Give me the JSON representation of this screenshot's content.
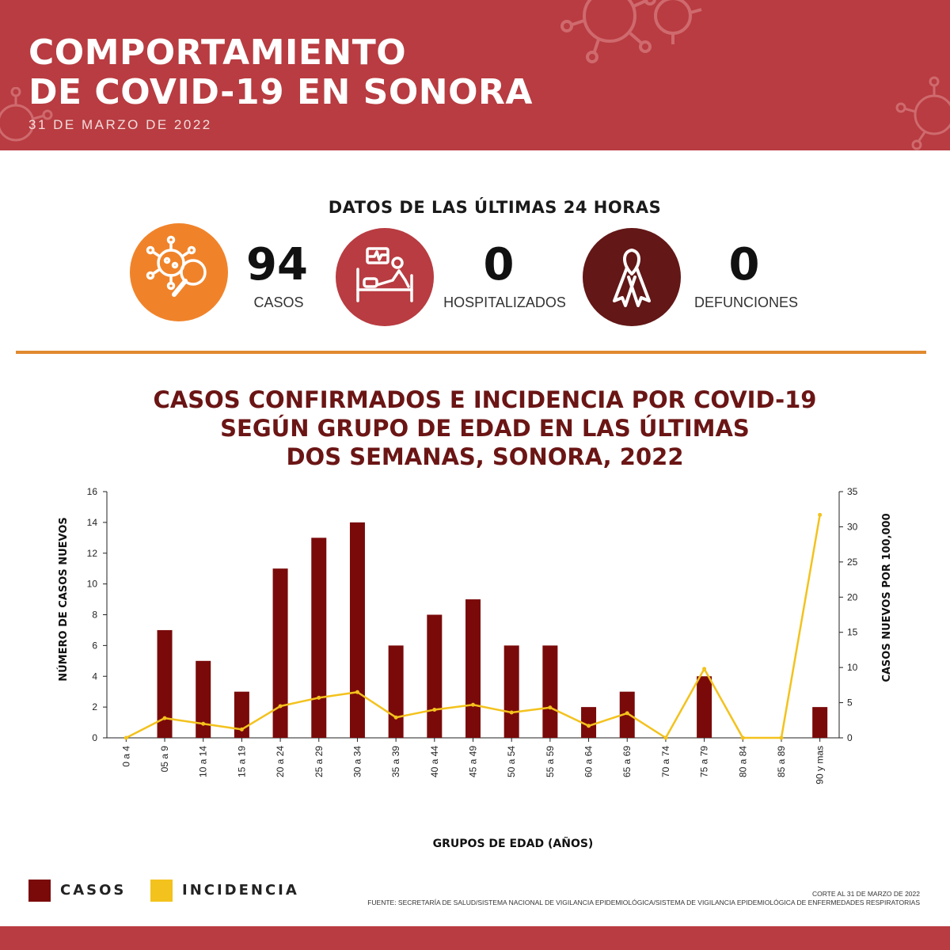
{
  "header": {
    "title": "COMPORTAMIENTO\nDE COVID-19 EN SONORA",
    "date": "31 DE MARZO DE 2022"
  },
  "stats": {
    "title": "DATOS DE LAS ÚLTIMAS 24 HORAS",
    "items": [
      {
        "value": "94",
        "label": "CASOS",
        "icon": "virus-magnifier-icon",
        "color": "#f0832a"
      },
      {
        "value": "0",
        "label": "HOSPITALIZADOS",
        "icon": "hospital-bed-icon",
        "color": "#b83c41"
      },
      {
        "value": "0",
        "label": "DEFUNCIONES",
        "icon": "ribbon-icon",
        "color": "#631717"
      }
    ]
  },
  "colors": {
    "header": "#b83c41",
    "bars": "#7a0a0a",
    "line": "#f3c21d",
    "title": "#6b1515",
    "divider": "#e08a2e"
  },
  "chart_data": {
    "type": "bar",
    "title": "CASOS CONFIRMADOS E INCIDENCIA POR COVID-19\nSEGÚN GRUPO DE EDAD EN LAS ÚLTIMAS\nDOS SEMANAS, SONORA, 2022",
    "xlabel": "GRUPOS DE EDAD (AÑOS)",
    "ylabel": "NÚMERO DE CASOS NUEVOS",
    "y2label": "CASOS NUEVOS POR 100,000",
    "ylim": [
      0,
      16
    ],
    "y2lim": [
      0,
      35
    ],
    "yticks": [
      "0",
      "2",
      "4",
      "6",
      "8",
      "10",
      "12",
      "14",
      "16"
    ],
    "y2ticks": [
      "0",
      "5",
      "10",
      "15",
      "20",
      "25",
      "30",
      "35"
    ],
    "categories": [
      "0 a 4",
      "05 a 9",
      "10 a 14",
      "15 a 19",
      "20 a 24",
      "25 a 29",
      "30 a 34",
      "35 a 39",
      "40 a 44",
      "45 a 49",
      "50 a 54",
      "55 a 59",
      "60 a 64",
      "65 a 69",
      "70 a 74",
      "75 a 79",
      "80 a 84",
      "85 a 89",
      "90 y mas"
    ],
    "series": [
      {
        "name": "CASOS",
        "type": "bar",
        "axis": "left",
        "values": [
          0,
          7,
          5,
          3,
          11,
          13,
          14,
          6,
          8,
          9,
          6,
          6,
          2,
          3,
          0,
          4,
          0,
          0,
          2
        ]
      },
      {
        "name": "INCIDENCIA",
        "type": "line",
        "axis": "right",
        "values": [
          0,
          2.8,
          2.0,
          1.2,
          4.5,
          5.7,
          6.5,
          2.9,
          4.0,
          4.7,
          3.6,
          4.3,
          1.7,
          3.5,
          0,
          9.8,
          0,
          0,
          31.7
        ]
      }
    ],
    "legend_position": "bottom-left"
  },
  "source": {
    "corte": "CORTE AL 31 DE MARZO DE 2022",
    "fuente": "FUENTE: SECRETARÍA DE SALUD/SISTEMA NACIONAL DE VIGILANCIA EPIDEMIOLÓGICA/SISTEMA DE VIGILANCIA EPIDEMIOLÓGICA DE ENFERMEDADES RESPIRATORIAS"
  }
}
